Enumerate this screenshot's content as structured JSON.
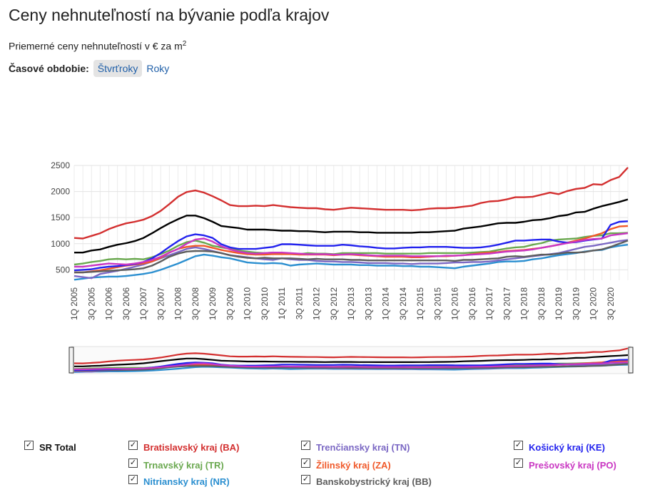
{
  "title": "Ceny nehnuteľností na bývanie podľa krajov",
  "subtitle": {
    "text": "Priemerné ceny nehnuteľností v € za m",
    "sup": "2"
  },
  "period": {
    "label": "Časové obdobie:",
    "options": [
      "Štvrťroky",
      "Roky"
    ],
    "selected": "Štvrťroky"
  },
  "checkbox_glyph": "✓",
  "chart_data": {
    "type": "line",
    "ylim": [
      300,
      2500
    ],
    "yticks": [
      500,
      1000,
      1500,
      2000,
      2500
    ],
    "grid": true,
    "x": [
      "1Q 2005",
      "2Q 2005",
      "3Q 2005",
      "4Q 2005",
      "1Q 2006",
      "2Q 2006",
      "3Q 2006",
      "4Q 2006",
      "1Q 2007",
      "2Q 2007",
      "3Q 2007",
      "4Q 2007",
      "1Q 2008",
      "2Q 2008",
      "3Q 2008",
      "4Q 2008",
      "1Q 2009",
      "2Q 2009",
      "3Q 2009",
      "4Q 2009",
      "1Q 2010",
      "2Q 2010",
      "3Q 2010",
      "4Q 2010",
      "1Q 2011",
      "2Q 2011",
      "3Q 2011",
      "4Q 2011",
      "1Q 2012",
      "2Q 2012",
      "3Q 2012",
      "4Q 2012",
      "1Q 2013",
      "2Q 2013",
      "3Q 2013",
      "4Q 2013",
      "1Q 2014",
      "2Q 2014",
      "3Q 2014",
      "4Q 2014",
      "1Q 2015",
      "2Q 2015",
      "3Q 2015",
      "4Q 2015",
      "1Q 2016",
      "2Q 2016",
      "3Q 2016",
      "4Q 2016",
      "1Q 2017",
      "2Q 2017",
      "3Q 2017",
      "4Q 2017",
      "1Q 2018",
      "2Q 2018",
      "3Q 2018",
      "4Q 2018",
      "1Q 2019",
      "2Q 2019",
      "3Q 2019",
      "4Q 2019",
      "1Q 2020",
      "2Q 2020",
      "3Q 2020",
      "4Q 2020",
      "1Q 2021"
    ],
    "xtick_labels": [
      "1Q 2005",
      "3Q 2005",
      "1Q 2006",
      "3Q 2006",
      "1Q 2007",
      "3Q 2007",
      "1Q 2008",
      "3Q 2008",
      "1Q 2009",
      "3Q 2009",
      "1Q 2010",
      "3Q 2010",
      "1Q 2011",
      "3Q 2011",
      "1Q 2012",
      "3Q 2012",
      "1Q 2013",
      "3Q 2013",
      "1Q 2014",
      "3Q 2014",
      "1Q 2015",
      "3Q 2015",
      "1Q 2016",
      "3Q 2016",
      "1Q 2017",
      "3Q 2017",
      "1Q 2018",
      "3Q 2018",
      "1Q 2019",
      "3Q 2019",
      "1Q 2020",
      "3Q 2020"
    ],
    "series": [
      {
        "name": "SR Total",
        "color": "#000000",
        "values": [
          830,
          830,
          870,
          890,
          940,
          980,
          1010,
          1050,
          1110,
          1200,
          1300,
          1390,
          1470,
          1540,
          1540,
          1490,
          1420,
          1340,
          1320,
          1300,
          1270,
          1270,
          1270,
          1260,
          1250,
          1250,
          1240,
          1240,
          1230,
          1220,
          1230,
          1230,
          1230,
          1220,
          1220,
          1210,
          1210,
          1210,
          1210,
          1210,
          1220,
          1220,
          1230,
          1240,
          1250,
          1290,
          1310,
          1330,
          1360,
          1390,
          1400,
          1400,
          1420,
          1450,
          1460,
          1490,
          1530,
          1550,
          1600,
          1610,
          1670,
          1720,
          1760,
          1800,
          1850
        ]
      },
      {
        "name": "Bratislavský kraj (BA)",
        "color": "#d32f2f",
        "values": [
          1110,
          1100,
          1150,
          1200,
          1280,
          1340,
          1390,
          1420,
          1460,
          1530,
          1630,
          1760,
          1900,
          1990,
          2020,
          1980,
          1910,
          1830,
          1740,
          1720,
          1720,
          1730,
          1720,
          1740,
          1720,
          1700,
          1690,
          1680,
          1680,
          1660,
          1650,
          1670,
          1690,
          1680,
          1670,
          1660,
          1650,
          1650,
          1650,
          1640,
          1650,
          1670,
          1680,
          1680,
          1690,
          1710,
          1730,
          1780,
          1810,
          1820,
          1850,
          1890,
          1890,
          1900,
          1940,
          1980,
          1950,
          2010,
          2050,
          2070,
          2140,
          2130,
          2220,
          2280,
          2460
        ]
      },
      {
        "name": "Trnavský kraj (TR)",
        "color": "#6aa84f",
        "values": [
          600,
          620,
          650,
          670,
          700,
          710,
          700,
          710,
          700,
          740,
          800,
          870,
          960,
          1030,
          1060,
          1020,
          960,
          930,
          900,
          870,
          850,
          830,
          820,
          830,
          820,
          810,
          800,
          820,
          810,
          810,
          800,
          820,
          820,
          820,
          820,
          820,
          810,
          810,
          810,
          810,
          810,
          820,
          820,
          820,
          820,
          820,
          830,
          840,
          850,
          880,
          910,
          930,
          940,
          980,
          1010,
          1060,
          1080,
          1090,
          1100,
          1130,
          1150,
          1160,
          1200,
          1200,
          1210
        ]
      },
      {
        "name": "Nitriansky kraj (NR)",
        "color": "#2b8fd0",
        "values": [
          310,
          330,
          350,
          360,
          370,
          370,
          380,
          400,
          420,
          450,
          500,
          560,
          620,
          690,
          760,
          790,
          770,
          740,
          720,
          680,
          640,
          630,
          620,
          630,
          620,
          580,
          600,
          610,
          620,
          610,
          600,
          600,
          600,
          590,
          590,
          580,
          580,
          580,
          570,
          570,
          560,
          560,
          550,
          540,
          530,
          560,
          580,
          600,
          620,
          650,
          660,
          660,
          670,
          700,
          720,
          750,
          780,
          800,
          820,
          850,
          870,
          880,
          930,
          960,
          980
        ]
      },
      {
        "name": "Trenčiansky kraj (TN)",
        "color": "#7b68c4",
        "values": [
          380,
          360,
          340,
          420,
          450,
          480,
          520,
          560,
          600,
          660,
          720,
          780,
          840,
          900,
          930,
          900,
          860,
          820,
          780,
          760,
          740,
          720,
          700,
          690,
          720,
          700,
          690,
          690,
          670,
          660,
          660,
          650,
          650,
          640,
          630,
          630,
          630,
          620,
          620,
          610,
          620,
          620,
          620,
          630,
          640,
          640,
          650,
          650,
          660,
          680,
          700,
          720,
          740,
          760,
          780,
          800,
          820,
          860,
          900,
          940,
          960,
          990,
          1020,
          1050,
          1070
        ]
      },
      {
        "name": "Žilinský kraj (ZA)",
        "color": "#f0592a",
        "values": [
          450,
          450,
          470,
          490,
          520,
          550,
          580,
          600,
          620,
          660,
          730,
          830,
          900,
          940,
          960,
          960,
          920,
          880,
          850,
          820,
          800,
          790,
          790,
          800,
          800,
          800,
          790,
          790,
          790,
          790,
          780,
          790,
          790,
          780,
          770,
          760,
          750,
          750,
          750,
          740,
          740,
          750,
          760,
          760,
          770,
          780,
          800,
          820,
          830,
          840,
          860,
          870,
          880,
          900,
          920,
          950,
          980,
          1020,
          1060,
          1100,
          1150,
          1200,
          1280,
          1330,
          1340
        ]
      },
      {
        "name": "Banskobystrický kraj (BB)",
        "color": "#5d5d5d",
        "values": [
          450,
          450,
          460,
          470,
          480,
          490,
          500,
          510,
          530,
          580,
          660,
          750,
          810,
          850,
          860,
          860,
          850,
          820,
          780,
          750,
          730,
          720,
          730,
          720,
          720,
          720,
          710,
          700,
          710,
          700,
          700,
          700,
          690,
          690,
          680,
          680,
          680,
          680,
          680,
          680,
          680,
          680,
          680,
          680,
          670,
          690,
          690,
          700,
          710,
          720,
          750,
          760,
          750,
          770,
          790,
          790,
          810,
          830,
          830,
          840,
          870,
          890,
          940,
          1000,
          1060
        ]
      },
      {
        "name": "Košický kraj (KE)",
        "color": "#2222ee",
        "values": [
          490,
          500,
          510,
          540,
          560,
          570,
          590,
          610,
          650,
          720,
          820,
          940,
          1050,
          1140,
          1180,
          1160,
          1110,
          990,
          930,
          900,
          900,
          900,
          920,
          940,
          990,
          990,
          980,
          970,
          960,
          960,
          960,
          980,
          970,
          950,
          940,
          920,
          910,
          910,
          920,
          930,
          930,
          940,
          940,
          940,
          930,
          920,
          920,
          930,
          950,
          980,
          1020,
          1060,
          1060,
          1070,
          1080,
          1080,
          1040,
          1020,
          1030,
          1060,
          1080,
          1100,
          1360,
          1420,
          1430
        ]
      },
      {
        "name": "Prešovský kraj (PO)",
        "color": "#c936c2",
        "values": [
          560,
          560,
          580,
          600,
          620,
          610,
          600,
          620,
          650,
          690,
          750,
          830,
          900,
          1000,
          1080,
          1100,
          1040,
          950,
          890,
          850,
          820,
          810,
          820,
          830,
          830,
          820,
          810,
          800,
          800,
          800,
          790,
          790,
          800,
          790,
          780,
          770,
          770,
          770,
          770,
          760,
          760,
          760,
          760,
          770,
          770,
          780,
          790,
          800,
          810,
          830,
          850,
          860,
          870,
          890,
          920,
          950,
          980,
          1010,
          1040,
          1070,
          1090,
          1100,
          1160,
          1180,
          1200
        ]
      }
    ]
  }
}
